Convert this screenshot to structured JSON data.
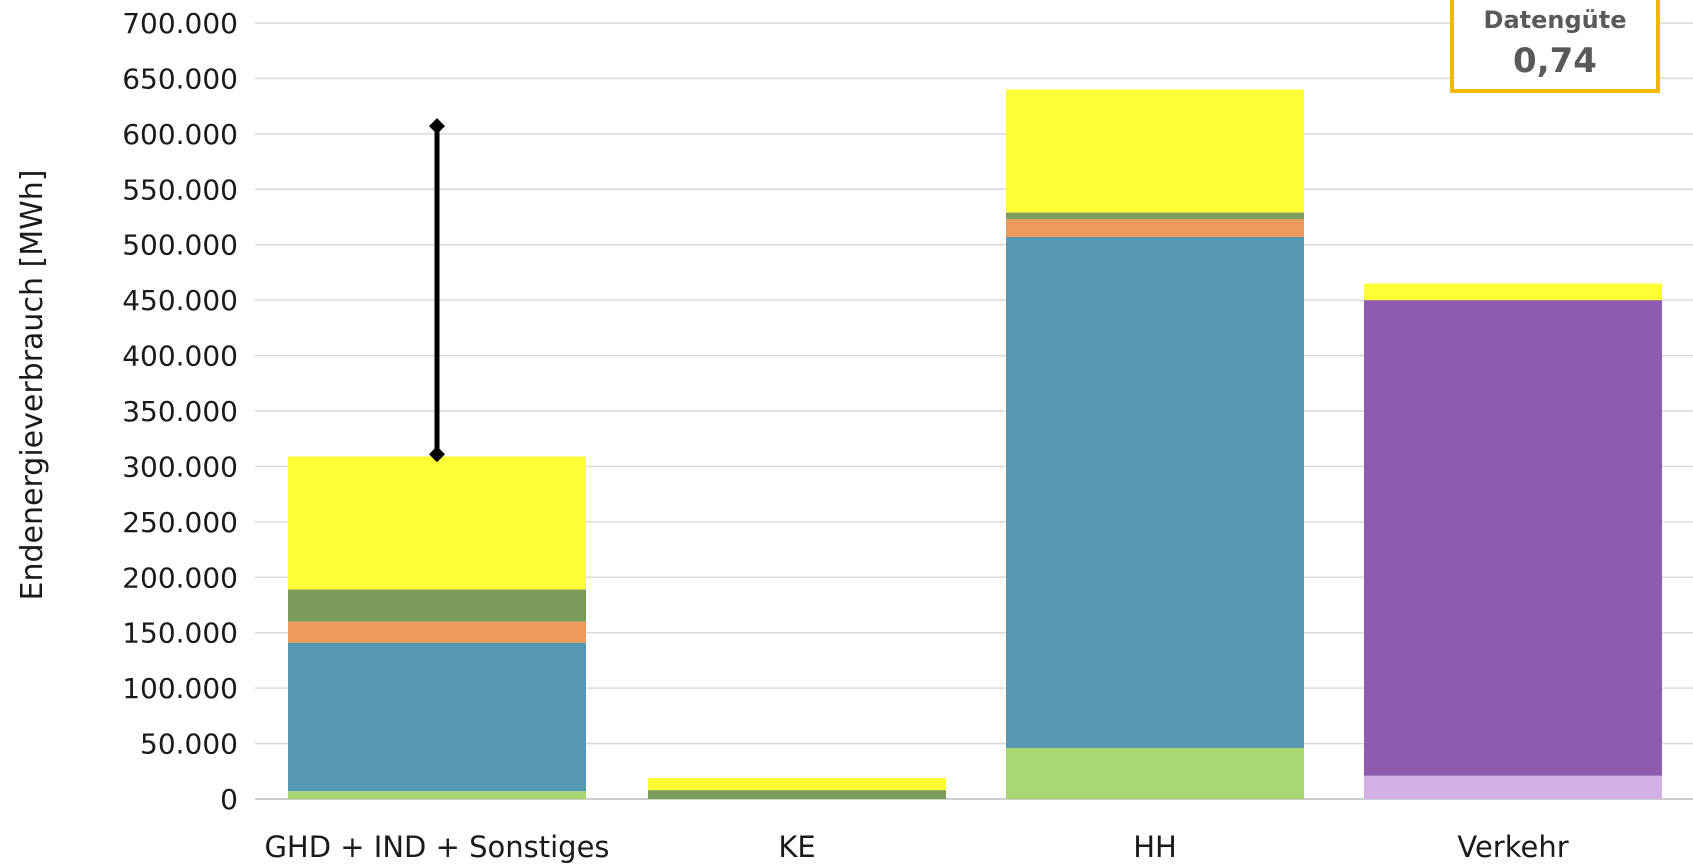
{
  "chart_data": {
    "type": "bar",
    "stacked": true,
    "ylabel": "Endenergieverbrauch [MWh]",
    "xlabel": "",
    "ylim": [
      0,
      700000
    ],
    "y_tick_values": [
      0,
      50000,
      100000,
      150000,
      200000,
      250000,
      300000,
      350000,
      400000,
      450000,
      500000,
      550000,
      600000,
      650000,
      700000
    ],
    "y_tick_labels": [
      "0",
      "50.000",
      "100.000",
      "150.000",
      "200.000",
      "250.000",
      "300.000",
      "350.000",
      "400.000",
      "450.000",
      "500.000",
      "550.000",
      "600.000",
      "650.000",
      "700.000"
    ],
    "grid": true,
    "categories": [
      "GHD + IND + Sonstiges",
      "KE",
      "HH",
      "Verkehr"
    ],
    "series": [
      {
        "color": "#a9d873",
        "values": [
          7000,
          0,
          46000,
          0
        ]
      },
      {
        "color": "#d3b0e3",
        "values": [
          0,
          0,
          0,
          21000
        ]
      },
      {
        "color": "#8e5bae",
        "values": [
          0,
          0,
          0,
          429000
        ]
      },
      {
        "color": "#5698b1",
        "values": [
          134000,
          0,
          461000,
          0
        ]
      },
      {
        "color": "#ee9a5d",
        "values": [
          19000,
          0,
          16000,
          0
        ]
      },
      {
        "color": "#7a9b5a",
        "values": [
          29000,
          8000,
          6000,
          0
        ]
      },
      {
        "color": "#ffff36",
        "values": [
          120000,
          11000,
          111000,
          15000
        ]
      }
    ],
    "error_bar": {
      "category": "GHD + IND + Sonstiges",
      "low": 311000,
      "high": 607000,
      "color": "#000000"
    },
    "annotation": {
      "title": "Datengüte",
      "value": "0,74",
      "border_color": "#f5b800"
    }
  }
}
